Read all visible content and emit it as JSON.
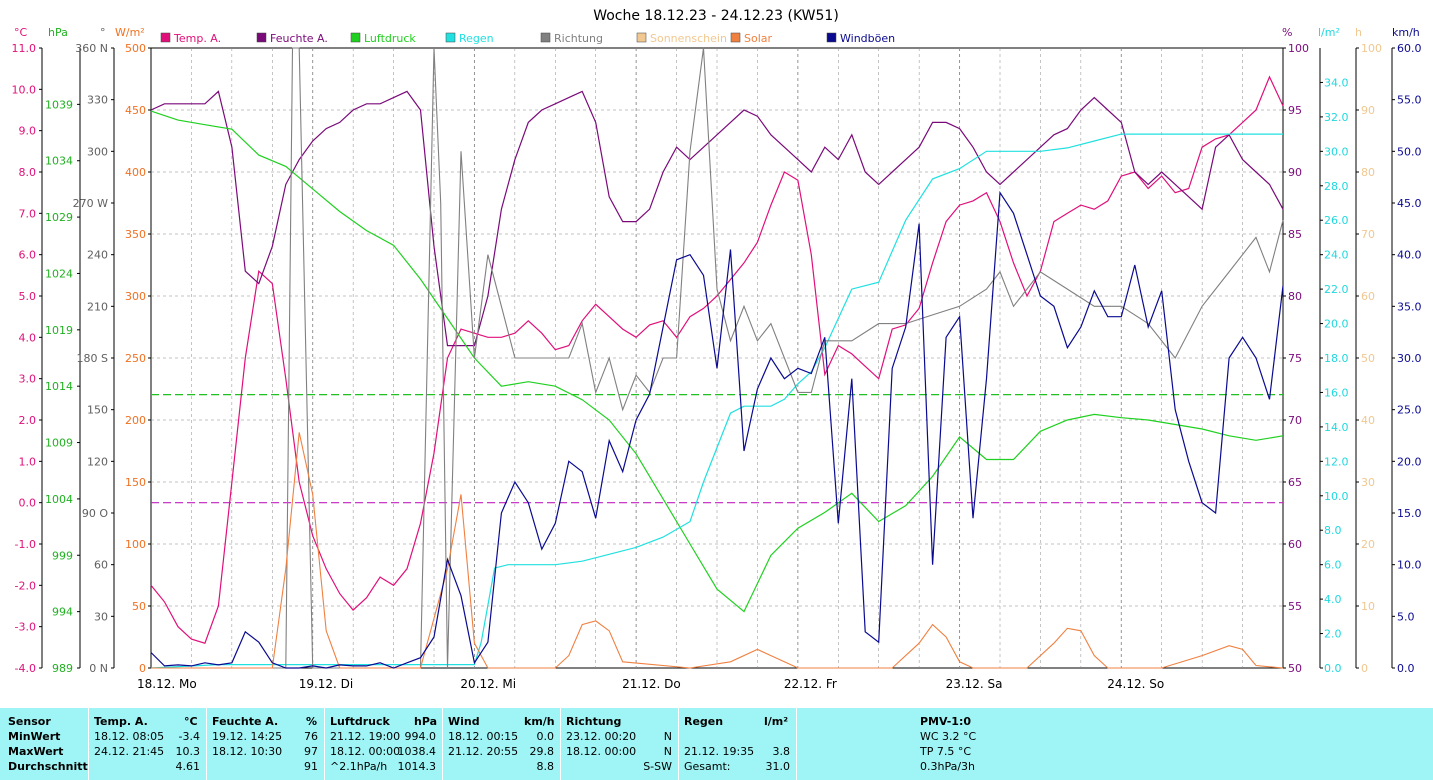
{
  "chart_data": {
    "type": "line",
    "title": "Woche 18.12.23 - 24.12.23 (KW51)",
    "x_labels": [
      "18.12. Mo",
      "19.12. Di",
      "20.12. Mi",
      "21.12. Do",
      "22.12. Fr",
      "23.12. Sa",
      "24.12. So"
    ],
    "hours_total": 168,
    "legend": [
      {
        "name": "Temp. A.",
        "color": "#e0107a"
      },
      {
        "name": "Feuchte A.",
        "color": "#7a0a7a"
      },
      {
        "name": "Luftdruck",
        "color": "#20d020"
      },
      {
        "name": "Regen",
        "color": "#20e0e0"
      },
      {
        "name": "Richtung",
        "color": "#808080"
      },
      {
        "name": "Sonnenschein",
        "color": "#f0c890"
      },
      {
        "name": "Solar",
        "color": "#f08040"
      },
      {
        "name": "Windböen",
        "color": "#0a0a90"
      }
    ],
    "axes": {
      "temp": {
        "unit": "°C",
        "color": "#e0107a",
        "min": -4,
        "max": 11,
        "ticks": [
          "-4.0",
          "-3.0",
          "-2.0",
          "-1.0",
          "0.0",
          "1.0",
          "2.0",
          "3.0",
          "4.0",
          "5.0",
          "6.0",
          "7.0",
          "8.0",
          "9.0",
          "10.0",
          "11.0"
        ]
      },
      "pressure": {
        "unit": "hPa",
        "color": "#20b020",
        "min": 989,
        "max": 1044,
        "ticks": [
          "989",
          "994",
          "999",
          "1004",
          "1009",
          "1014",
          "1019",
          "1024",
          "1029",
          "1034",
          "1039"
        ]
      },
      "direction": {
        "unit": "°",
        "color": "#606060",
        "min": 0,
        "max": 360,
        "ticks": [
          "0 N",
          "30",
          "60",
          "90 O",
          "120",
          "150",
          "180 S",
          "210",
          "240",
          "270 W",
          "300",
          "330",
          "360 N"
        ]
      },
      "solar": {
        "unit": "W/m²",
        "color": "#f07020",
        "min": 0,
        "max": 500,
        "ticks": [
          "0",
          "50",
          "100",
          "150",
          "200",
          "250",
          "300",
          "350",
          "400",
          "450",
          "500"
        ]
      },
      "humidity": {
        "unit": "%",
        "color": "#7a0a7a",
        "min": 50,
        "max": 100,
        "ticks": [
          "50",
          "55",
          "60",
          "65",
          "70",
          "75",
          "80",
          "85",
          "90",
          "95",
          "100"
        ]
      },
      "rain": {
        "unit": "l/m²",
        "color": "#20d8e0",
        "min": 0,
        "max": 36,
        "ticks": [
          "0.0",
          "2.0",
          "4.0",
          "6.0",
          "8.0",
          "10.0",
          "12.0",
          "14.0",
          "16.0",
          "18.0",
          "20.0",
          "22.0",
          "24.0",
          "26.0",
          "28.0",
          "30.0",
          "32.0",
          "34.0"
        ]
      },
      "sun": {
        "unit": "h",
        "color": "#f0c890",
        "min": 0,
        "max": 100,
        "ticks": [
          "0",
          "10",
          "20",
          "30",
          "40",
          "50",
          "60",
          "70",
          "80",
          "90",
          "100"
        ]
      },
      "wind": {
        "unit": "km/h",
        "color": "#0a0a90",
        "min": 0,
        "max": 60,
        "ticks": [
          "0.0",
          "5.0",
          "10.0",
          "15.0",
          "20.0",
          "25.0",
          "30.0",
          "35.0",
          "40.0",
          "45.0",
          "50.0",
          "55.0",
          "60.0"
        ]
      }
    },
    "series": [
      {
        "name": "Temp. A.",
        "axis": "temp",
        "x": [
          0,
          2,
          4,
          6,
          8,
          10,
          12,
          14,
          16,
          18,
          20,
          22,
          24,
          26,
          28,
          30,
          32,
          34,
          36,
          38,
          40,
          42,
          44,
          46,
          48,
          50,
          52,
          54,
          56,
          58,
          60,
          62,
          64,
          66,
          68,
          70,
          72,
          74,
          76,
          78,
          80,
          82,
          84,
          86,
          88,
          90,
          92,
          94,
          96,
          98,
          100,
          102,
          104,
          106,
          108,
          110,
          112,
          114,
          116,
          118,
          120,
          122,
          124,
          126,
          128,
          130,
          132,
          134,
          136,
          138,
          140,
          142,
          144,
          146,
          148,
          150,
          152,
          154,
          156,
          158,
          160,
          162,
          164,
          166,
          168
        ],
        "y": [
          -2.0,
          -2.4,
          -3.0,
          -3.3,
          -3.4,
          -2.5,
          0.5,
          3.5,
          5.6,
          5.3,
          3.0,
          0.5,
          -0.8,
          -1.6,
          -2.2,
          -2.6,
          -2.3,
          -1.8,
          -2.0,
          -1.6,
          -0.5,
          1.2,
          3.5,
          4.2,
          4.1,
          4.0,
          4.0,
          4.1,
          4.4,
          4.1,
          3.7,
          3.8,
          4.4,
          4.8,
          4.5,
          4.2,
          4.0,
          4.3,
          4.4,
          4.0,
          4.5,
          4.7,
          5.0,
          5.4,
          5.8,
          6.3,
          7.2,
          8.0,
          7.8,
          6.0,
          3.1,
          3.8,
          3.6,
          3.3,
          3.0,
          4.2,
          4.3,
          4.7,
          5.8,
          6.8,
          7.2,
          7.3,
          7.5,
          6.8,
          5.8,
          5.0,
          5.6,
          6.8,
          7.0,
          7.2,
          7.1,
          7.3,
          7.9,
          8.0,
          7.6,
          7.9,
          7.5,
          7.6,
          8.6,
          8.8,
          8.9,
          9.2,
          9.5,
          10.3,
          9.6
        ]
      },
      {
        "name": "Feuchte A.",
        "axis": "humidity",
        "x": [
          0,
          2,
          4,
          6,
          8,
          10,
          12,
          14,
          16,
          18,
          20,
          22,
          24,
          26,
          28,
          30,
          32,
          34,
          36,
          38,
          40,
          42,
          44,
          46,
          48,
          50,
          52,
          54,
          56,
          58,
          60,
          62,
          64,
          66,
          68,
          70,
          72,
          74,
          76,
          78,
          80,
          82,
          84,
          86,
          88,
          90,
          92,
          94,
          96,
          98,
          100,
          102,
          104,
          106,
          108,
          110,
          112,
          114,
          116,
          118,
          120,
          122,
          124,
          126,
          128,
          130,
          132,
          134,
          136,
          138,
          140,
          142,
          144,
          146,
          148,
          150,
          152,
          154,
          156,
          158,
          160,
          162,
          164,
          166,
          168
        ],
        "y": [
          95,
          95.5,
          95.5,
          95.5,
          95.5,
          96.5,
          92,
          82,
          81,
          84,
          89,
          91,
          92.5,
          93.5,
          94,
          95,
          95.5,
          95.5,
          96,
          96.5,
          95,
          84,
          76,
          76,
          76,
          80,
          87,
          91,
          94,
          95,
          95.5,
          96,
          96.5,
          94,
          88,
          86,
          86,
          87,
          90,
          92,
          91,
          92,
          93,
          94,
          95,
          94.5,
          93,
          92,
          91,
          90,
          92,
          91,
          93,
          90,
          89,
          90,
          91,
          92,
          94,
          94,
          93.5,
          92,
          90,
          89,
          90,
          91,
          92,
          93,
          93.5,
          95,
          96,
          95,
          94,
          90,
          89,
          90,
          89,
          88,
          87,
          92,
          93,
          91,
          90,
          89,
          87
        ]
      },
      {
        "name": "Luftdruck",
        "axis": "pressure",
        "x": [
          0,
          4,
          8,
          12,
          16,
          20,
          24,
          28,
          32,
          36,
          40,
          44,
          48,
          52,
          56,
          60,
          64,
          68,
          72,
          76,
          80,
          84,
          88,
          92,
          96,
          100,
          104,
          108,
          112,
          116,
          120,
          124,
          128,
          132,
          136,
          140,
          144,
          148,
          152,
          156,
          160,
          164,
          168
        ],
        "y": [
          1038.4,
          1037.6,
          1037.2,
          1036.8,
          1034.5,
          1033.5,
          1031.5,
          1029.5,
          1027.8,
          1026.5,
          1023.5,
          1020,
          1016.5,
          1014,
          1014.4,
          1014,
          1012.8,
          1011,
          1008,
          1004,
          1000,
          996,
          994.0,
          999,
          1001.4,
          1002.8,
          1004.5,
          1002,
          1003.4,
          1006,
          1009.5,
          1007.5,
          1007.5,
          1010,
          1011,
          1011.5,
          1011.2,
          1011.0,
          1010.6,
          1010.2,
          1009.6,
          1009.2,
          1009.6
        ]
      },
      {
        "name": "Regen",
        "axis": "rain",
        "x": [
          0,
          10,
          20,
          30,
          40,
          48,
          49,
          51,
          53,
          56,
          60,
          64,
          68,
          72,
          76,
          80,
          82,
          84,
          86,
          88,
          90,
          92,
          94,
          96,
          98,
          100,
          104,
          108,
          112,
          116,
          120,
          124,
          128,
          132,
          136,
          140,
          144,
          148,
          152,
          156,
          160,
          164,
          168
        ],
        "y": [
          0,
          0.2,
          0.2,
          0.2,
          0.2,
          0.2,
          1.5,
          5.8,
          6.0,
          6.0,
          6.0,
          6.2,
          6.6,
          7.0,
          7.6,
          8.5,
          10.8,
          12.8,
          14.8,
          15.2,
          15.2,
          15.2,
          15.6,
          16.5,
          17.2,
          18.6,
          22.0,
          22.4,
          26.0,
          28.4,
          29.0,
          30.0,
          30.0,
          30.0,
          30.2,
          30.6,
          31.0,
          31.0,
          31.0,
          31.0,
          31.0,
          31.0,
          31.0
        ]
      },
      {
        "name": "Richtung",
        "axis": "direction",
        "x": [
          0,
          10,
          20,
          21,
          22,
          24,
          26,
          30,
          34,
          40,
          42,
          43,
          44,
          46,
          48,
          50,
          52,
          54,
          56,
          58,
          60,
          62,
          64,
          66,
          68,
          70,
          72,
          74,
          76,
          78,
          80,
          82,
          84,
          86,
          88,
          90,
          92,
          94,
          96,
          98,
          100,
          104,
          108,
          112,
          116,
          120,
          124,
          126,
          128,
          132,
          136,
          140,
          144,
          148,
          152,
          156,
          160,
          164,
          166,
          168
        ],
        "y": [
          0,
          0,
          0,
          360,
          360,
          0,
          0,
          0,
          0,
          0,
          360,
          270,
          0,
          300,
          180,
          240,
          210,
          180,
          180,
          180,
          180,
          180,
          200,
          160,
          180,
          150,
          170,
          160,
          180,
          180,
          300,
          360,
          220,
          190,
          210,
          190,
          200,
          180,
          160,
          160,
          190,
          190,
          200,
          200,
          205,
          210,
          220,
          230,
          210,
          230,
          220,
          210,
          210,
          200,
          180,
          210,
          230,
          250,
          230,
          260
        ]
      },
      {
        "name": "Solar",
        "axis": "solar",
        "x": [
          0,
          18,
          20,
          22,
          24,
          26,
          28,
          40,
          44,
          46,
          48,
          50,
          52,
          60,
          62,
          64,
          66,
          68,
          70,
          80,
          86,
          90,
          92,
          94,
          96,
          110,
          114,
          116,
          118,
          120,
          122,
          130,
          134,
          136,
          138,
          140,
          142,
          150,
          156,
          160,
          162,
          164,
          168
        ],
        "y": [
          0,
          0,
          80,
          190,
          140,
          30,
          0,
          0,
          80,
          140,
          20,
          0,
          0,
          0,
          10,
          35,
          38,
          30,
          5,
          0,
          5,
          15,
          10,
          5,
          0,
          0,
          20,
          35,
          25,
          5,
          0,
          0,
          20,
          32,
          30,
          10,
          0,
          0,
          10,
          18,
          15,
          2,
          0
        ]
      },
      {
        "name": "Windböen",
        "axis": "wind",
        "x": [
          0,
          2,
          4,
          6,
          8,
          10,
          12,
          14,
          16,
          18,
          20,
          22,
          24,
          26,
          28,
          30,
          32,
          34,
          36,
          38,
          40,
          42,
          44,
          46,
          48,
          50,
          52,
          54,
          56,
          58,
          60,
          62,
          64,
          66,
          68,
          70,
          72,
          74,
          76,
          78,
          80,
          82,
          84,
          86,
          88,
          90,
          92,
          94,
          96,
          98,
          100,
          102,
          104,
          106,
          108,
          110,
          112,
          114,
          116,
          118,
          120,
          122,
          124,
          126,
          128,
          130,
          132,
          134,
          136,
          138,
          140,
          142,
          144,
          146,
          148,
          150,
          152,
          154,
          156,
          158,
          160,
          162,
          164,
          166,
          168
        ],
        "y": [
          1.5,
          0.2,
          0.3,
          0.2,
          0.5,
          0.3,
          0.5,
          3.5,
          2.5,
          0.5,
          0,
          0,
          0.2,
          0,
          0.3,
          0.2,
          0.2,
          0.5,
          0,
          0.5,
          1.0,
          3.0,
          10.5,
          7.0,
          0.5,
          2.5,
          15.0,
          18.0,
          16.0,
          11.5,
          14.0,
          20.0,
          19.0,
          14.5,
          22.0,
          19.0,
          24.0,
          26.5,
          33.0,
          39.5,
          40.0,
          38.0,
          29.0,
          40.5,
          21.0,
          27.0,
          30.0,
          28.0,
          29.0,
          28.5,
          32.0,
          14.0,
          28.0,
          3.5,
          2.5,
          29.0,
          33.0,
          43.0,
          10.0,
          32.0,
          34.0,
          14.5,
          28.0,
          46.0,
          44.0,
          40.0,
          36.0,
          35.0,
          31.0,
          33.0,
          36.5,
          34.0,
          34.0,
          39.0,
          33.0,
          36.5,
          25.0,
          20.0,
          16.0,
          15.0,
          30.0,
          32.0,
          30.0,
          26.0,
          37.0
        ]
      }
    ],
    "reference_lines": [
      {
        "axis": "pressure",
        "value": 1013.25,
        "color": "#20c020",
        "style": "dashed"
      },
      {
        "axis": "temp",
        "value": 0,
        "color": "#c020c0",
        "style": "dashed"
      }
    ]
  },
  "table": {
    "sensor": {
      "header": "Sensor",
      "rows": [
        "MinWert",
        "MaxWert",
        "Durchschnitt"
      ]
    },
    "temp": {
      "header": "Temp. A.",
      "unit": "°C",
      "min_time": "18.12.  08:05",
      "min_val": "-3.4",
      "max_time": "24.12.  21:45",
      "max_val": "10.3",
      "avg_val": "4.61"
    },
    "feuchte": {
      "header": "Feuchte A.",
      "unit": "%",
      "min_time": "19.12.  14:25",
      "min_val": "76",
      "max_time": "18.12.  10:30",
      "max_val": "97",
      "avg_val": "91"
    },
    "luftdruck": {
      "header": "Luftdruck",
      "unit": "hPa",
      "min_time": "21.12.  19:00",
      "min_val": "994.0",
      "max_time": "18.12.  00:00",
      "max_val": "1038.4",
      "avg_label": "^2.1hPa/h",
      "avg_val": "1014.3"
    },
    "wind": {
      "header": "Wind",
      "unit": "km/h",
      "min_time": "18.12.  00:15",
      "min_val": "0.0",
      "max_time": "21.12.  20:55",
      "max_val": "29.8",
      "avg_val": "8.8"
    },
    "richtung": {
      "header": "Richtung",
      "min_time": "23.12.  00:20",
      "min_val": "N",
      "max_time": "18.12.  00:00",
      "max_val": "N",
      "avg_val": "S-SW"
    },
    "regen": {
      "header": "Regen",
      "unit": "l/m²",
      "max_time": "21.12.  19:35",
      "max_val": "3.8",
      "total_label": "Gesamt:",
      "total_val": "31.0"
    },
    "pmv": {
      "header": "PMV-1:0",
      "wc": "WC 3.2 °C",
      "tp": "TP 7.5 °C",
      "rate": "0.3hPa/3h"
    }
  }
}
